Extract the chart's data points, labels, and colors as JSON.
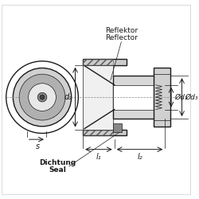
{
  "bg_color": "#ffffff",
  "line_color": "#1a1a1a",
  "hatch_color": "#1a1a1a",
  "fill_light": "#e8e8e8",
  "fill_dark": "#555555",
  "title": "",
  "labels": {
    "reflektor": "Reflektor",
    "reflector": "Reflector",
    "dichtung": "Dichtung",
    "seal": "Seal",
    "d2": "d₂",
    "d1": "Ød₁",
    "d3": "Ød₃",
    "l1": "l₁",
    "l2": "l₂",
    "s": "s"
  },
  "font_size_labels": 7,
  "font_size_annot": 6.5
}
